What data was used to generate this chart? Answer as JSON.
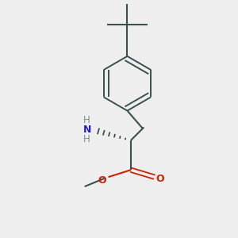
{
  "background_color": "#eeeeee",
  "bond_color": "#3a5050",
  "nh2_n_color": "#2222bb",
  "nh2_h_color": "#7a9090",
  "oxygen_color": "#cc2200",
  "figsize": [
    3.0,
    3.0
  ],
  "dpi": 100,
  "xlim": [
    0,
    10
  ],
  "ylim": [
    0,
    10
  ]
}
